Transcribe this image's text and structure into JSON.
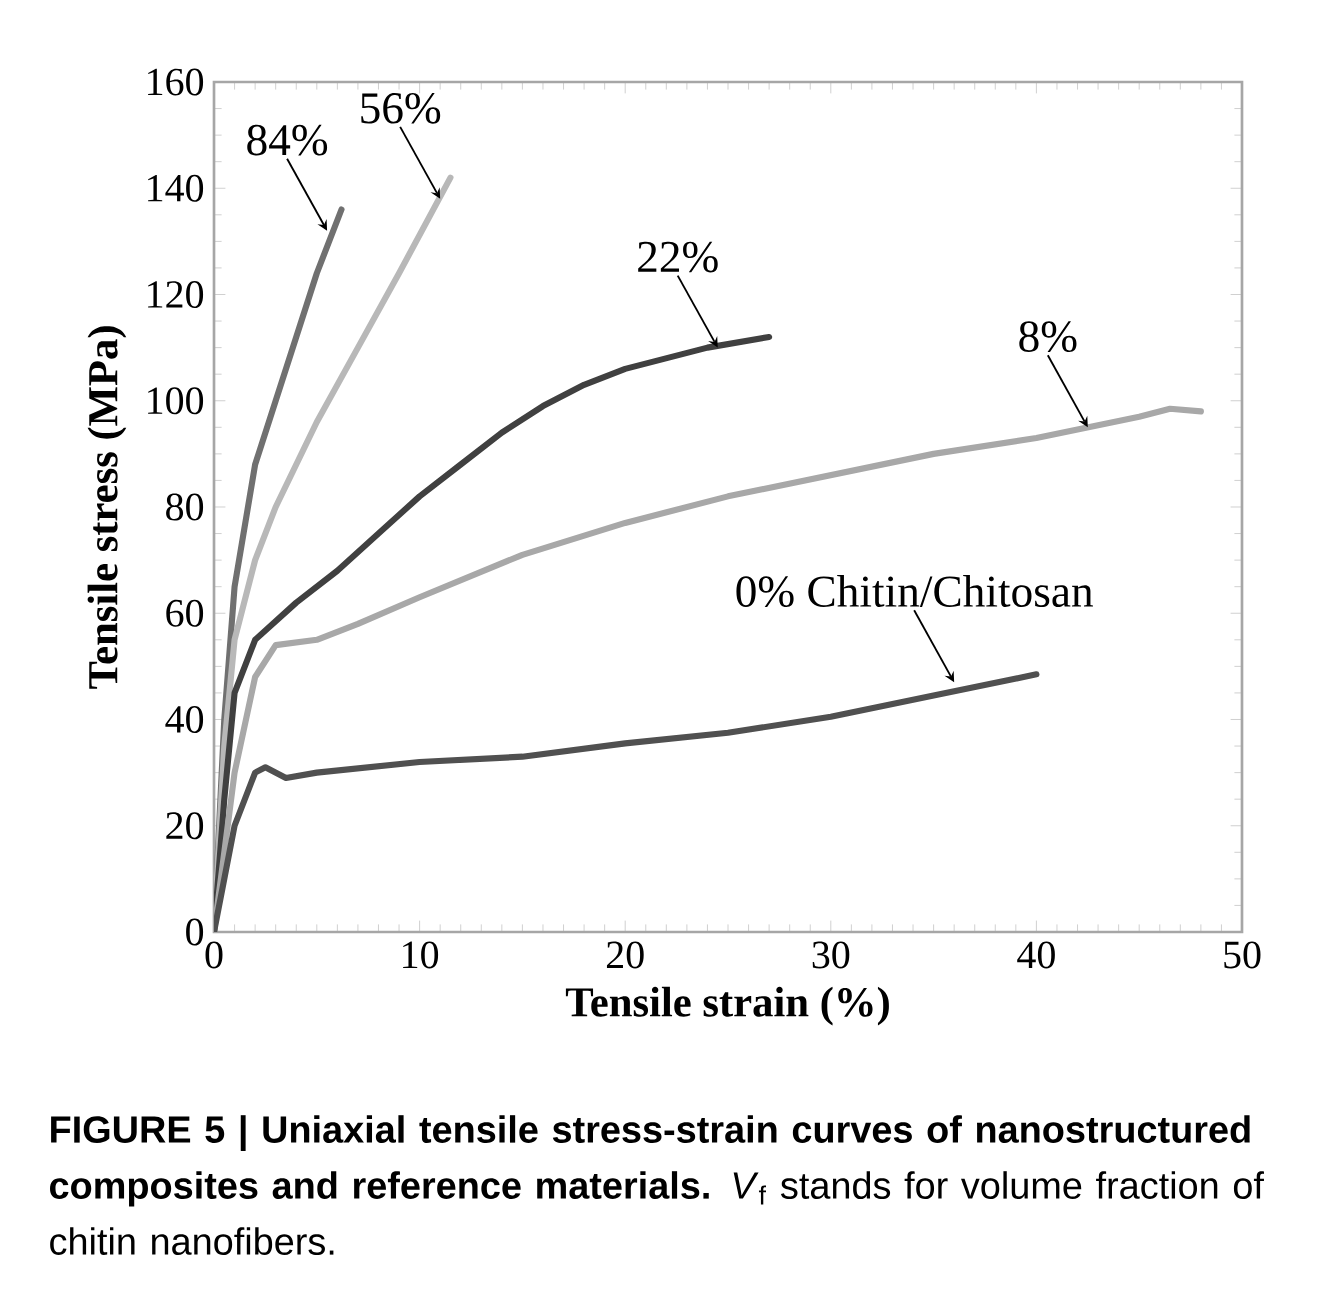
{
  "chart_data": {
    "type": "line",
    "xlabel": "Tensile strain (%)",
    "ylabel": "Tensile stress (MPa)",
    "xlim": [
      0,
      50
    ],
    "ylim": [
      0,
      160
    ],
    "xticks": [
      0,
      10,
      20,
      30,
      40,
      50
    ],
    "yticks": [
      0,
      20,
      40,
      60,
      80,
      100,
      120,
      140,
      160
    ],
    "grid": false,
    "marker": "none",
    "line_style": "solid",
    "series": [
      {
        "color": "#707070",
        "x": [
          0,
          0.5,
          1,
          2,
          3,
          4,
          5,
          6.2
        ],
        "values": [
          0,
          40,
          65,
          88,
          100,
          112,
          124,
          136
        ]
      },
      {
        "color": "#b8b8b8",
        "x": [
          0,
          0.5,
          1,
          2,
          3,
          5,
          7,
          9,
          11.5
        ],
        "values": [
          0,
          35,
          55,
          70,
          80,
          96,
          110,
          124,
          142
        ]
      },
      {
        "color": "#404040",
        "x": [
          0,
          0.5,
          1,
          2,
          4,
          6,
          8,
          10,
          12,
          14,
          16,
          18,
          20,
          22,
          24,
          27
        ],
        "values": [
          0,
          25,
          45,
          55,
          62,
          68,
          75,
          82,
          88,
          94,
          99,
          103,
          106,
          108,
          110,
          112
        ]
      },
      {
        "color": "#a8a8a8",
        "x": [
          0,
          1,
          2,
          3,
          5,
          7,
          10,
          15,
          20,
          25,
          30,
          35,
          40,
          45,
          46.5,
          48
        ],
        "values": [
          0,
          30,
          48,
          54,
          55,
          58,
          63,
          71,
          77,
          82,
          86,
          90,
          93,
          97,
          98.5,
          98
        ]
      },
      {
        "color": "#505050",
        "x": [
          0,
          0.5,
          1,
          2,
          2.5,
          3.5,
          5,
          10,
          15,
          20,
          25,
          30,
          35,
          40
        ],
        "values": [
          0,
          10,
          20,
          30,
          31,
          29,
          30,
          32,
          33,
          35.5,
          37.5,
          40.5,
          44.5,
          48.5
        ]
      }
    ],
    "annotations": [
      {
        "text": "84%",
        "x": 5.5,
        "y": 132
      },
      {
        "text": "56%",
        "x": 11,
        "y": 138
      },
      {
        "text": "22%",
        "x": 24.5,
        "y": 110
      },
      {
        "text": "8%",
        "x": 42.5,
        "y": 95
      },
      {
        "text": "0% Chitin/Chitosan",
        "x": 36,
        "y": 47
      },
      "**FIGURE 5 | Uniaxial tensile stress-strain curves of nanostructured composites and reference materials.** *V*$_{f}$ stands for volume fraction of chitin nanofibers."
    ]
  }
}
